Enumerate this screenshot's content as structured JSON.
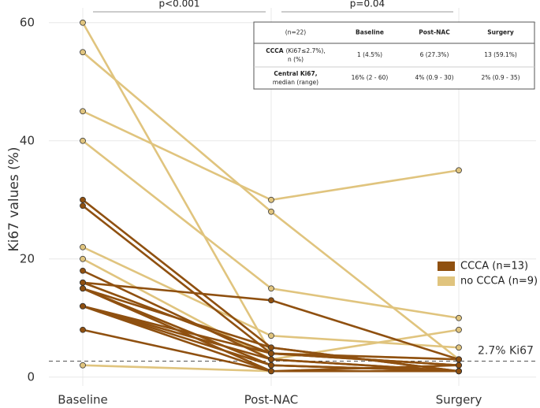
{
  "chart_data": {
    "type": "spaghetti",
    "y_label": "Ki67 values (%)",
    "categories": [
      "Baseline",
      "Post-NAC",
      "Surgery"
    ],
    "ylim": [
      -1.5,
      62.5
    ],
    "yticks": [
      0,
      20,
      40,
      60
    ],
    "grid": true,
    "series": [
      {
        "name": "CCCA (n=13)",
        "color": "#8f5010",
        "lines": [
          [
            30,
            5,
            1
          ],
          [
            29,
            4,
            2
          ],
          [
            18,
            3,
            1
          ],
          [
            16,
            13,
            3
          ],
          [
            15,
            2,
            1
          ],
          [
            15,
            1,
            2
          ],
          [
            12,
            3,
            1
          ],
          [
            12,
            2,
            1
          ],
          [
            12,
            1,
            1
          ],
          [
            8,
            1,
            1
          ],
          [
            16,
            4,
            2
          ],
          [
            15,
            5,
            1
          ],
          [
            12,
            4,
            3
          ]
        ]
      },
      {
        "name": "no CCCA (n=9)",
        "color": "#e0c47e",
        "lines": [
          [
            60,
            4,
            3
          ],
          [
            55,
            28,
            3
          ],
          [
            45,
            30,
            35
          ],
          [
            40,
            15,
            10
          ],
          [
            22,
            7,
            5
          ],
          [
            20,
            3,
            8
          ],
          [
            16,
            4,
            2
          ],
          [
            15,
            2,
            1
          ],
          [
            2,
            1,
            1
          ]
        ]
      }
    ],
    "legend_position": "right",
    "annotations": [
      {
        "text": "p<0.001",
        "from": 0,
        "to": 1
      },
      {
        "text": "p=0.04",
        "from": 1,
        "to": 2
      }
    ],
    "reference_line": {
      "value": 2.7,
      "label": "2.7% Ki67"
    },
    "table": {
      "header": [
        "(n=22)",
        "Baseline",
        "Post-NAC",
        "Surgery"
      ],
      "rows": [
        {
          "label": "CCCA",
          "sublabel": "(Ki67≤2.7%),",
          "sublabel2": "n (%)",
          "cells": [
            "1 (4.5%)",
            "6 (27.3%)",
            "13 (59.1%)"
          ]
        },
        {
          "label": "Central Ki67,",
          "sublabel": "median (range)",
          "cells": [
            "16% (2 - 60)",
            "4% (0.9 - 30)",
            "2% (0.9 - 35)"
          ]
        }
      ]
    }
  }
}
